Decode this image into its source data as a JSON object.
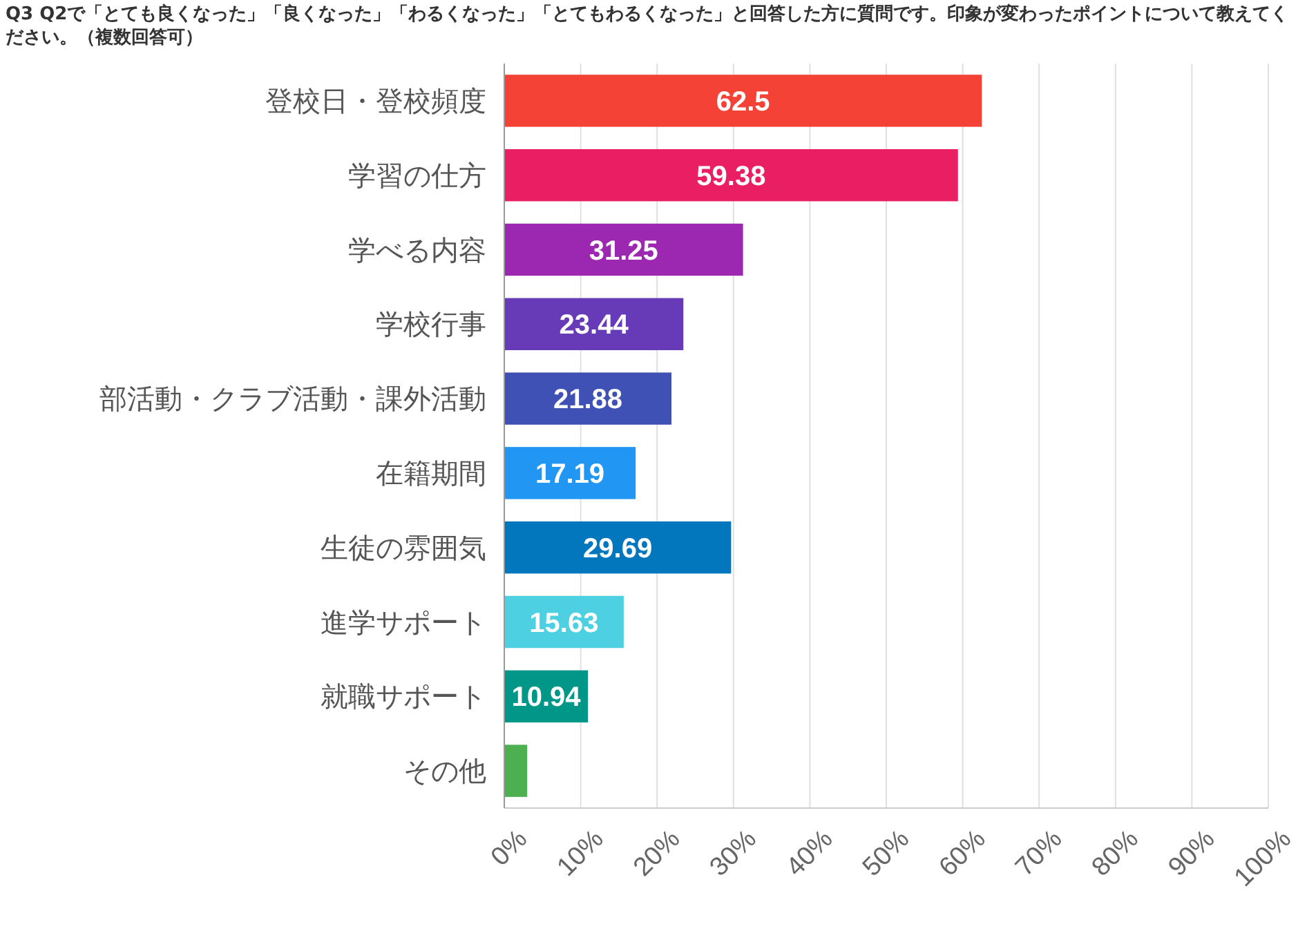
{
  "chart_data": {
    "type": "bar",
    "orientation": "horizontal",
    "title": "Q3 Q2で「とても良くなった」「良くなった」「わるくなった」「とてもわるくなった」と回答した方に質問です。印象が変わったポイントについて教えてください。（複数回答可）",
    "categories": [
      "登校日・登校頻度",
      "学習の仕方",
      "学べる内容",
      "学校行事",
      "部活動・クラブ活動・課外活動",
      "在籍期間",
      "生徒の雰囲気",
      "進学サポート",
      "就職サポート",
      "その他"
    ],
    "values": [
      62.5,
      59.38,
      31.25,
      23.44,
      21.88,
      17.19,
      29.69,
      15.63,
      10.94,
      3
    ],
    "value_labels": [
      "62.5",
      "59.38",
      "31.25",
      "23.44",
      "21.88",
      "17.19",
      "29.69",
      "15.63",
      "10.94",
      null
    ],
    "colors": [
      "#f44336",
      "#e91e63",
      "#9c27b0",
      "#673ab7",
      "#3f51b5",
      "#2196f3",
      "#0277bd",
      "#4dd0e1",
      "#009688",
      "#4caf50"
    ],
    "xlim": [
      0,
      100
    ],
    "xticks": [
      {
        "value": 0,
        "label": "0%"
      },
      {
        "value": 10,
        "label": "10%"
      },
      {
        "value": 20,
        "label": "20%"
      },
      {
        "value": 30,
        "label": "30%"
      },
      {
        "value": 40,
        "label": "40%"
      },
      {
        "value": 50,
        "label": "50%"
      },
      {
        "value": 60,
        "label": "60%"
      },
      {
        "value": 70,
        "label": "70%"
      },
      {
        "value": 80,
        "label": "80%"
      },
      {
        "value": 90,
        "label": "90%"
      },
      {
        "value": 100,
        "label": "100%"
      }
    ],
    "grid": "x"
  }
}
